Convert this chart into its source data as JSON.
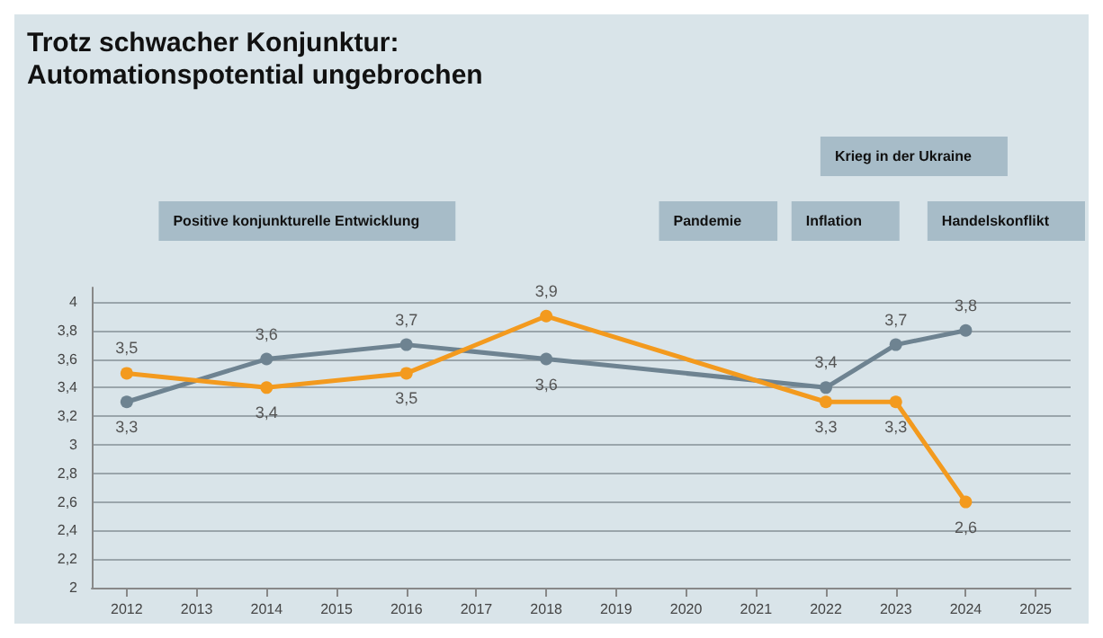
{
  "chart_data": {
    "type": "line",
    "title": "Trotz schwacher Konjunktur:\nAutomationspotential ungebrochen",
    "categories": [
      "2012",
      "2013",
      "2014",
      "2015",
      "2016",
      "2017",
      "2018",
      "2019",
      "2020",
      "2021",
      "2022",
      "2023",
      "2024",
      "2025"
    ],
    "series": [
      {
        "color": "#6e8391",
        "values": [
          3.3,
          null,
          3.6,
          null,
          3.7,
          null,
          3.6,
          null,
          null,
          null,
          3.4,
          3.7,
          3.8,
          null
        ],
        "value_labels": [
          "3,3",
          null,
          "3,6",
          null,
          "3,7",
          null,
          "3,6",
          null,
          null,
          null,
          "3,4",
          "3,7",
          "3,8",
          null
        ]
      },
      {
        "color": "#f39a1e",
        "values": [
          3.5,
          null,
          3.4,
          null,
          3.5,
          null,
          3.9,
          null,
          null,
          null,
          3.3,
          3.3,
          2.6,
          null
        ],
        "value_labels": [
          "3,5",
          null,
          "3,4",
          null,
          "3,5",
          null,
          "3,9",
          null,
          null,
          null,
          "3,3",
          "3,3",
          "2,6",
          null
        ]
      }
    ],
    "ylim": [
      2,
      4.1
    ],
    "yticks": [
      2,
      {
        "value": 2.2,
        "label": "2,2"
      },
      {
        "value": 2.4,
        "label": "2,4"
      },
      {
        "value": 2.6,
        "label": "2,6"
      },
      {
        "value": 2.8,
        "label": "2,8"
      },
      3,
      {
        "value": 3.2,
        "label": "3,2"
      },
      {
        "value": 3.4,
        "label": "3,4"
      },
      {
        "value": 3.6,
        "label": "3,6"
      },
      {
        "value": 3.8,
        "label": "3,8"
      },
      4
    ],
    "grid": "y",
    "marker": "circle",
    "line_style": "solid",
    "annotations": [
      "Positive konjunkturelle Entwicklung",
      "Pandemie",
      "Inflation",
      "Krieg in der Ukraine",
      "Handelskonflikt"
    ]
  }
}
